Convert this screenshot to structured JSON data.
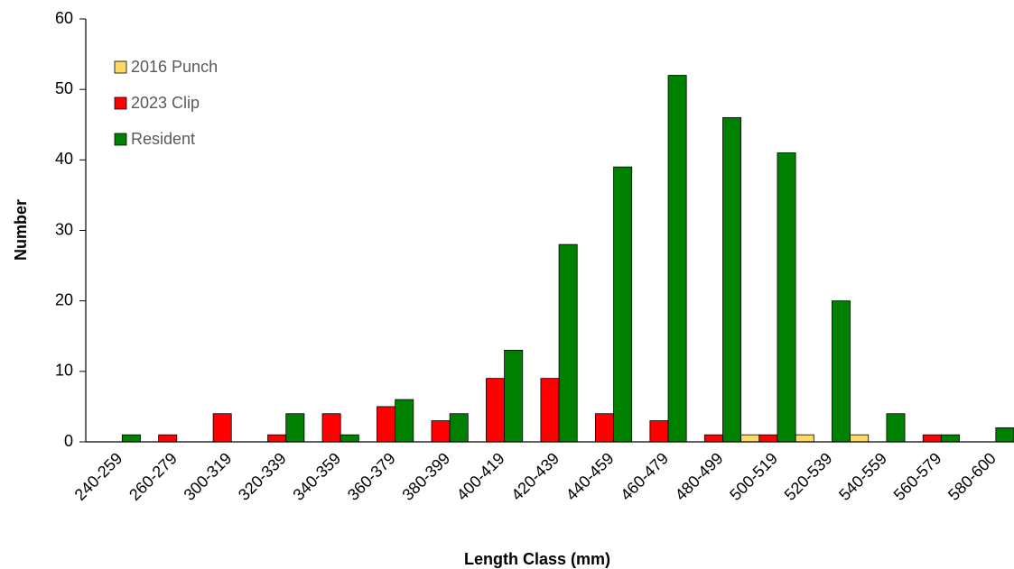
{
  "chart_data": {
    "type": "bar",
    "categories": [
      "240-259",
      "260-279",
      "300-319",
      "320-339",
      "340-359",
      "360-379",
      "380-399",
      "400-419",
      "420-439",
      "440-459",
      "460-479",
      "480-499",
      "500-519",
      "520-539",
      "540-559",
      "560-579",
      "580-600"
    ],
    "series": [
      {
        "name": "2016 Punch",
        "color": "#ffd966",
        "values": [
          0,
          0,
          0,
          0,
          0,
          0,
          0,
          0,
          0,
          0,
          0,
          0,
          1,
          1,
          1,
          0,
          0
        ]
      },
      {
        "name": "2023 Clip",
        "color": "#ff0000",
        "values": [
          0,
          1,
          4,
          1,
          4,
          5,
          3,
          9,
          9,
          4,
          3,
          1,
          1,
          0,
          0,
          1,
          0
        ]
      },
      {
        "name": "Resident",
        "color": "#008000",
        "values": [
          1,
          0,
          0,
          4,
          1,
          6,
          4,
          13,
          28,
          39,
          52,
          46,
          41,
          20,
          4,
          1,
          2
        ]
      }
    ],
    "x_label": "Length Class (mm)",
    "y_label": "Number",
    "ylim": [
      0,
      60
    ],
    "yticks": [
      0,
      10,
      20,
      30,
      40,
      50,
      60
    ],
    "grid": false,
    "legend": "upper left"
  }
}
